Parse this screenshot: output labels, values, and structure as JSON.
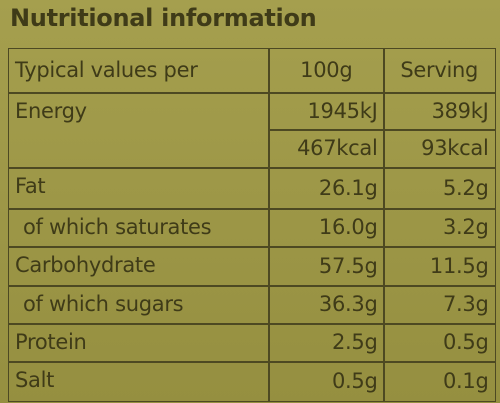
{
  "header": {
    "title": "Nutritional information"
  },
  "table": {
    "columns": [
      "Typical values per",
      "100g",
      "Serving"
    ],
    "rows": [
      [
        "Energy",
        "1945kJ",
        "389kJ"
      ],
      [
        null,
        "467kcal",
        "93kcal"
      ],
      [
        "Fat",
        "26.1g",
        "5.2g"
      ],
      [
        "of which saturates",
        "16.0g",
        "3.2g"
      ],
      [
        "Carbohydrate",
        "57.5g",
        "11.5g"
      ],
      [
        "of which sugars",
        "36.3g",
        "7.3g"
      ],
      [
        "Protein",
        "2.5g",
        "0.5g"
      ],
      [
        "Salt",
        "0.5g",
        "0.1g"
      ]
    ]
  }
}
